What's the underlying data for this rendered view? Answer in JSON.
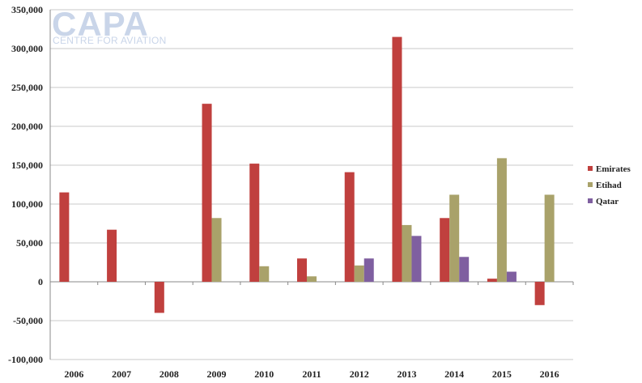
{
  "logo": {
    "title": "CAPA",
    "subtitle": "CENTRE FOR AVIATION"
  },
  "chart_data": {
    "type": "bar",
    "categories": [
      "2006",
      "2007",
      "2008",
      "2009",
      "2010",
      "2011",
      "2012",
      "2013",
      "2014",
      "2015",
      "2016"
    ],
    "series": [
      {
        "name": "Emirates",
        "color": "#c0403e",
        "values": [
          115000,
          67000,
          -40000,
          229000,
          152000,
          30000,
          141000,
          315000,
          82000,
          4000,
          -30000
        ]
      },
      {
        "name": "Etihad",
        "color": "#a9a26a",
        "values": [
          0,
          0,
          0,
          82000,
          20000,
          7000,
          21000,
          73000,
          112000,
          159000,
          112000
        ]
      },
      {
        "name": "Qatar",
        "color": "#7f5fa0",
        "values": [
          0,
          0,
          0,
          0,
          0,
          0,
          30000,
          59000,
          32000,
          13000,
          0
        ]
      }
    ],
    "yticks": [
      "-100,000",
      "-50,000",
      "0",
      "50,000",
      "100,000",
      "150,000",
      "200,000",
      "250,000",
      "300,000",
      "350,000"
    ],
    "ylim": [
      -100000,
      350000
    ],
    "grid": true,
    "legend": "right",
    "title": "",
    "xlabel": "",
    "ylabel": ""
  }
}
